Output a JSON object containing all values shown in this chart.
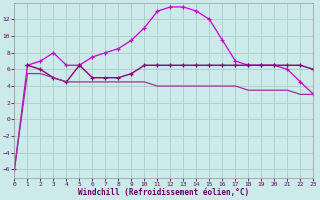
{
  "background_color": "#cceaea",
  "grid_color": "#aacccc",
  "line_color1": "#cc00cc",
  "line_color2": "#880077",
  "line_color3": "#993399",
  "xlabel": "Windchill (Refroidissement éolien,°C)",
  "xlim": [
    0,
    23
  ],
  "ylim": [
    -7,
    14
  ],
  "yticks": [
    -6,
    -4,
    -2,
    0,
    2,
    4,
    6,
    8,
    10,
    12
  ],
  "xticks": [
    0,
    1,
    2,
    3,
    4,
    5,
    6,
    7,
    8,
    9,
    10,
    11,
    12,
    13,
    14,
    15,
    16,
    17,
    18,
    19,
    20,
    21,
    22,
    23
  ],
  "series1_x": [
    0,
    1,
    2,
    3,
    4,
    5,
    6,
    7,
    8,
    9,
    10,
    11,
    12,
    13,
    14,
    15,
    16,
    17,
    18,
    19,
    20,
    21,
    22,
    23
  ],
  "series1_y": [
    -6.0,
    6.5,
    7.0,
    8.0,
    6.5,
    6.5,
    7.5,
    8.0,
    8.5,
    9.5,
    11.0,
    13.0,
    13.5,
    13.5,
    13.0,
    12.0,
    9.5,
    7.0,
    6.5,
    6.5,
    6.5,
    6.0,
    4.5,
    3.0
  ],
  "series2_x": [
    1,
    2,
    3,
    4,
    5,
    6,
    7,
    8,
    9,
    10,
    11,
    12,
    13,
    14,
    15,
    16,
    17,
    18,
    19,
    20,
    21,
    22,
    23
  ],
  "series2_y": [
    6.5,
    6.0,
    5.0,
    4.5,
    6.5,
    5.0,
    5.0,
    5.0,
    5.5,
    6.5,
    6.5,
    6.5,
    6.5,
    6.5,
    6.5,
    6.5,
    6.5,
    6.5,
    6.5,
    6.5,
    6.5,
    6.5,
    6.0
  ],
  "series3_x": [
    0,
    1,
    2,
    3,
    4,
    5,
    6,
    7,
    8,
    9,
    10,
    11,
    12,
    13,
    14,
    15,
    16,
    17,
    18,
    19,
    20,
    21,
    22,
    23
  ],
  "series3_y": [
    -6.0,
    5.5,
    5.5,
    5.0,
    4.5,
    4.5,
    4.5,
    4.5,
    4.5,
    4.5,
    4.5,
    4.0,
    4.0,
    4.0,
    4.0,
    4.0,
    4.0,
    4.0,
    3.5,
    3.5,
    3.5,
    3.5,
    3.0,
    3.0
  ]
}
